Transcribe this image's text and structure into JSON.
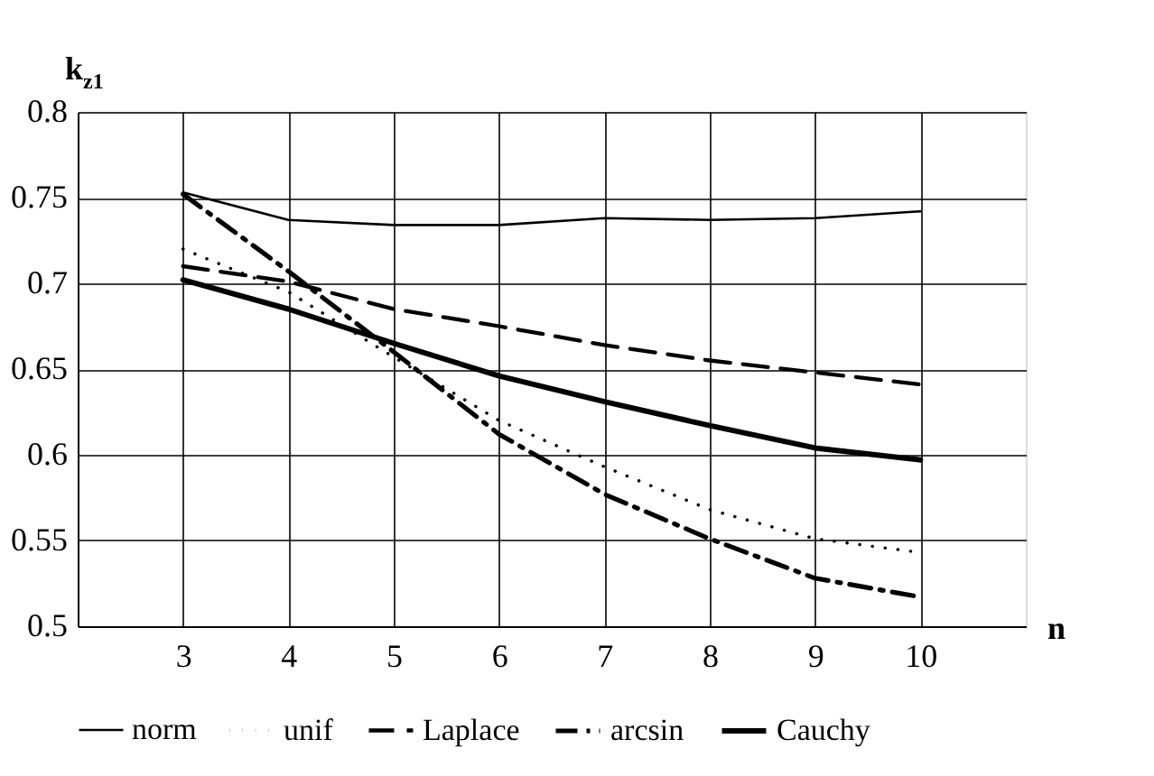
{
  "chart_data": {
    "type": "line",
    "xlabel": "n",
    "ylabel": "k$_{z1}$",
    "x": [
      3,
      4,
      5,
      6,
      7,
      8,
      9,
      10
    ],
    "series": [
      {
        "name": "norm",
        "color": "#000000",
        "line_style": "solid",
        "values": [
          0.753,
          0.737,
          0.734,
          0.734,
          0.738,
          0.737,
          0.738,
          0.742
        ]
      },
      {
        "name": "unif",
        "color": "#000000",
        "line_style": "dotted",
        "values": [
          0.72,
          0.695,
          0.657,
          0.62,
          0.593,
          0.568,
          0.551,
          0.543
        ]
      },
      {
        "name": "Laplace",
        "color": "#000000",
        "line_style": "dashed",
        "values": [
          0.71,
          0.701,
          0.685,
          0.675,
          0.664,
          0.655,
          0.648,
          0.641
        ]
      },
      {
        "name": "arcsin",
        "color": "#000000",
        "line_style": "dashdot",
        "values": [
          0.752,
          0.707,
          0.66,
          0.612,
          0.577,
          0.551,
          0.528,
          0.517
        ]
      },
      {
        "name": "Cauchy",
        "color": "#000000",
        "line_style": "solid",
        "values": [
          0.702,
          0.685,
          0.665,
          0.646,
          0.631,
          0.617,
          0.604,
          0.597
        ]
      }
    ],
    "xlim": [
      2,
      11
    ],
    "xticks": [
      3,
      4,
      5,
      6,
      7,
      8,
      9,
      10
    ],
    "ylim": [
      0.5,
      0.8
    ],
    "yticks": [
      0.5,
      0.55,
      0.6,
      0.65,
      0.7,
      0.75,
      0.8
    ],
    "grid": true,
    "legend": "bottom",
    "marker": "none"
  }
}
